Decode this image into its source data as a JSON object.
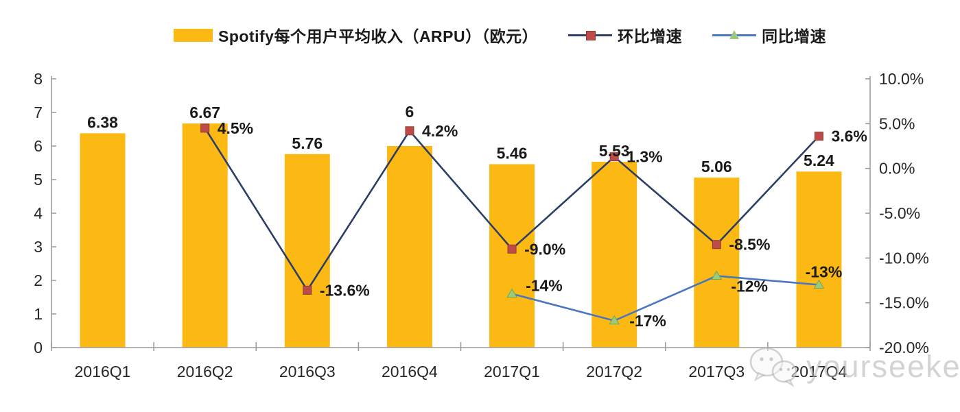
{
  "legend": {
    "series1": "Spotify每个用户平均收入（ARPU）（欧元）",
    "series2": "环比增速",
    "series3": "同比增速"
  },
  "watermark": {
    "text": "yourseeker",
    "icon": "wechat-icon"
  },
  "colors": {
    "bar": "#FDB913",
    "qoq_line": "#2C3E66",
    "qoq_marker_fill": "#BE4B48",
    "qoq_marker_border": "#8E3B38",
    "yoy_line": "#4A76C0",
    "yoy_marker_fill": "#9DC97C",
    "yoy_marker_border": "#6FA84F",
    "axis": "#9C9C9C",
    "label_text": "#1A1A1A",
    "tick_text": "#262626",
    "watermark": "#AFAFAF"
  },
  "chart_data": {
    "type": "bar+line combo, dual axis",
    "categories": [
      "2016Q1",
      "2016Q2",
      "2016Q3",
      "2016Q4",
      "2017Q1",
      "2017Q2",
      "2017Q3",
      "2017Q4"
    ],
    "series": [
      {
        "name": "Spotify每个用户平均收入（ARPU）（欧元）",
        "type": "bar",
        "axis": "left",
        "values": [
          6.38,
          6.67,
          5.76,
          6,
          5.46,
          5.53,
          5.06,
          5.24
        ],
        "labels": [
          "6.38",
          "6.67",
          "5.76",
          "6",
          "5.46",
          "5.53",
          "5.06",
          "5.24"
        ]
      },
      {
        "name": "环比增速",
        "type": "line",
        "axis": "right",
        "marker": "square",
        "values": [
          null,
          4.5,
          -13.6,
          4.2,
          -9.0,
          1.3,
          -8.5,
          3.6
        ],
        "labels": [
          null,
          "4.5%",
          "-13.6%",
          "4.2%",
          "-9.0%",
          "1.3%",
          "-8.5%",
          "3.6%"
        ]
      },
      {
        "name": "同比增速",
        "type": "line",
        "axis": "right",
        "marker": "triangle",
        "values": [
          null,
          null,
          null,
          null,
          -14,
          -17,
          -12,
          -13
        ],
        "labels": [
          null,
          null,
          null,
          null,
          "-14%",
          "-17%",
          "-12%",
          "-13%"
        ]
      }
    ],
    "y_left": {
      "min": 0,
      "max": 8,
      "tick_step": 1,
      "tick_labels": [
        "8",
        "7",
        "6",
        "5",
        "4",
        "3",
        "2",
        "1",
        "0"
      ]
    },
    "y_right": {
      "min": -20,
      "max": 10,
      "tick_step": 5,
      "tick_labels": [
        "10.0%",
        "5.0%",
        "0.0%",
        "-5.0%",
        "-10.0%",
        "-15.0%",
        "-20.0%"
      ]
    },
    "grid": false,
    "legend_position": "top"
  }
}
